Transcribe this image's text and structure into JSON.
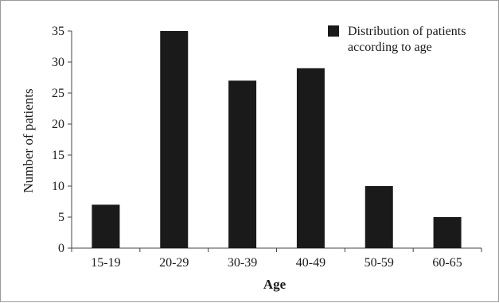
{
  "chart_data": {
    "type": "bar",
    "title": "",
    "xlabel": "Age",
    "ylabel": "Number of patients",
    "categories": [
      "15-19",
      "20-29",
      "30-39",
      "40-49",
      "50-59",
      "60-65"
    ],
    "series": [
      {
        "name": "Distribution of patients according to age",
        "values": [
          7,
          35,
          27,
          29,
          10,
          5
        ],
        "color": "#1a1a1a"
      }
    ],
    "ylim": [
      0,
      35
    ],
    "yticks": [
      0,
      5,
      10,
      15,
      20,
      25,
      30,
      35
    ],
    "grid": false,
    "legend": {
      "position": "top-right",
      "lines": [
        "Distribution of patients",
        "according to age"
      ]
    }
  }
}
